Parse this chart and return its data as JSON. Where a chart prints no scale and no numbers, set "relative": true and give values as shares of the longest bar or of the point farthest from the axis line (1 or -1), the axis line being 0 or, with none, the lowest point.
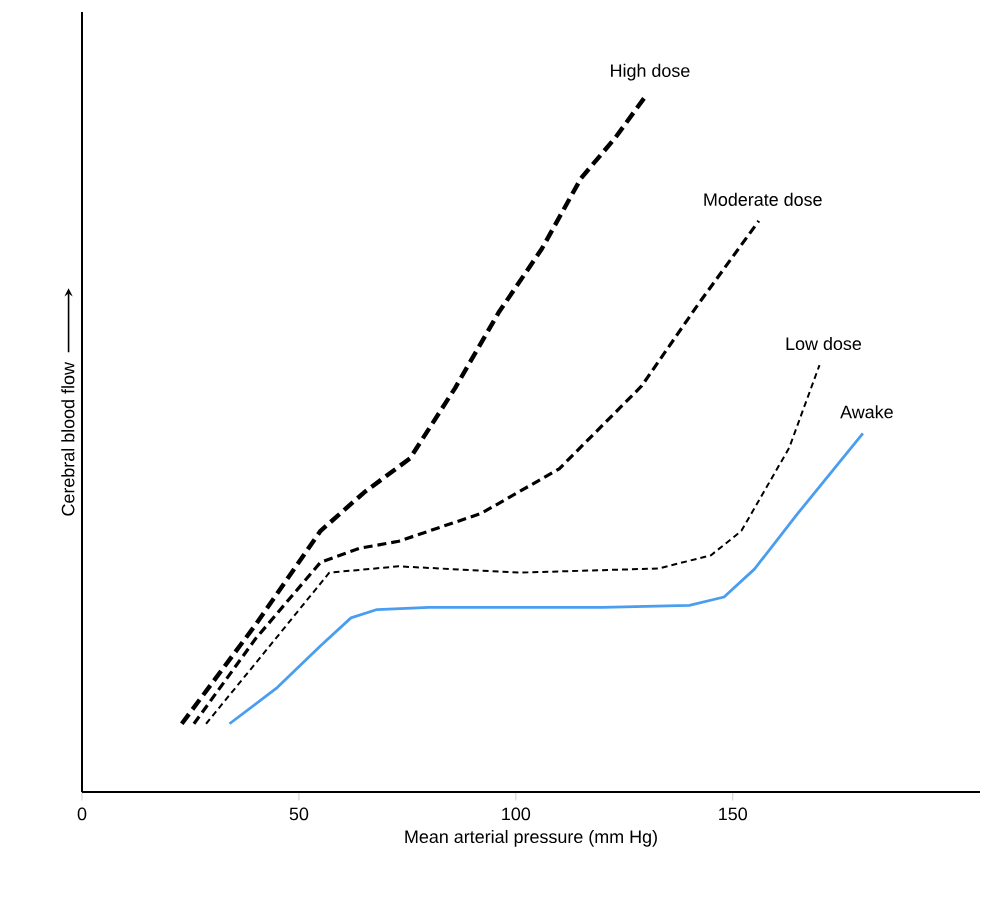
{
  "chart_data": {
    "type": "line",
    "relative": true,
    "xlabel": "Mean arterial pressure (mm Hg)",
    "ylabel": "Cerebral blood flow",
    "xlim": [
      0,
      207
    ],
    "xticks": [
      0,
      50,
      100,
      150
    ],
    "series": [
      {
        "name": "High dose",
        "color": "#000000",
        "line_style": "dashed",
        "x": [
          23,
          40,
          55,
          65,
          75.6,
          86,
          96,
          106,
          115,
          123,
          130
        ],
        "values": [
          0.098,
          0.24,
          0.375,
          0.43,
          0.479,
          0.58,
          0.688,
          0.78,
          0.881,
          0.94,
          1.0
        ]
      },
      {
        "name": "Moderate dose",
        "color": "#000000",
        "line_style": "dashed",
        "x": [
          25.8,
          40,
          55,
          64,
          73,
          92,
          110,
          129,
          142,
          156
        ],
        "values": [
          0.098,
          0.22,
          0.33,
          0.35,
          0.36,
          0.4,
          0.464,
          0.583,
          0.7,
          0.82
        ]
      },
      {
        "name": "Low dose",
        "color": "#000000",
        "line_style": "dashed",
        "x": [
          28.6,
          42,
          57,
          73,
          101,
          133,
          145,
          152,
          163,
          170
        ],
        "values": [
          0.098,
          0.2,
          0.315,
          0.324,
          0.315,
          0.321,
          0.34,
          0.375,
          0.494,
          0.613
        ]
      },
      {
        "name": "Awake",
        "color": "#4a9ef0",
        "line_style": "solid",
        "x": [
          34,
          45,
          55,
          62,
          68,
          80,
          100,
          120,
          140,
          148,
          155,
          165,
          180
        ],
        "values": [
          0.098,
          0.15,
          0.21,
          0.25,
          0.262,
          0.265,
          0.265,
          0.265,
          0.268,
          0.28,
          0.32,
          0.4,
          0.515
        ]
      }
    ]
  }
}
